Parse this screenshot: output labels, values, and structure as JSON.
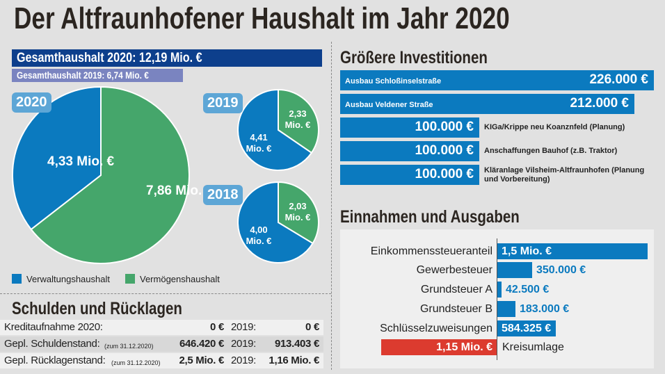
{
  "title": "Der Altfraunhofener Haushalt im Jahr 2020",
  "totals": {
    "t2020": "Gesamthaushalt 2020: 12,19 Mio. €",
    "t2019": "Gesamthaushalt 2019: 6,74 Mio. €"
  },
  "colors": {
    "blue": "#0b7abf",
    "green": "#45a66b",
    "navy": "#0d3f8c",
    "lavender": "#7a84c0",
    "tab": "#5da6d6",
    "red": "#dc3b2f"
  },
  "chart_data": [
    {
      "type": "pie",
      "title": "2020",
      "series": [
        {
          "name": "Verwaltungshaushalt",
          "value": 4.33,
          "label": "4,33 Mio. €"
        },
        {
          "name": "Vermögenshaushalt",
          "value": 7.86,
          "label": "7,86 Mio. €"
        }
      ]
    },
    {
      "type": "pie",
      "title": "2019",
      "series": [
        {
          "name": "Verwaltungshaushalt",
          "value": 4.41,
          "label": "4,41 Mio. €"
        },
        {
          "name": "Vermögenshaushalt",
          "value": 2.33,
          "label": "2,33 Mio. €"
        }
      ]
    },
    {
      "type": "pie",
      "title": "2018",
      "series": [
        {
          "name": "Verwaltungshaushalt",
          "value": 4.0,
          "label": "4,00 Mio. €"
        },
        {
          "name": "Vermögenshaushalt",
          "value": 2.03,
          "label": "2,03 Mio. €"
        }
      ]
    },
    {
      "type": "bar",
      "title": "Größere Investitionen",
      "categories": [
        "Ausbau Schloßinselstraße",
        "Ausbau Veldener Straße",
        "KIGa/Krippe neu Koanznfeld (Planung)",
        "Anschaffungen Bauhof (z.B. Traktor)",
        "Kläranlage Vilsheim-Altfraunhofen (Planung und Vorbereitung)"
      ],
      "values": [
        226000,
        212000,
        100000,
        100000,
        100000
      ],
      "labels": [
        "226.000 €",
        "212.000 €",
        "100.000 €",
        "100.000 €",
        "100.000 €"
      ]
    },
    {
      "type": "bar",
      "title": "Einnahmen und Ausgaben",
      "categories": [
        "Einkommenssteueranteil",
        "Gewerbesteuer",
        "Grundsteuer A",
        "Grundsteuer B",
        "Schlüsselzuweisungen",
        "Kreisumlage"
      ],
      "values": [
        1500000,
        350000,
        42500,
        183000,
        584325,
        -1150000
      ],
      "labels": [
        "1,5 Mio. €",
        "350.000 €",
        "42.500 €",
        "183.000 €",
        "584.325 €",
        "1,15 Mio. €"
      ]
    }
  ],
  "legend": [
    "Verwaltungshaushalt",
    "Vermögenshaushalt"
  ],
  "debt": {
    "title": "Schulden und Rücklagen",
    "rows": [
      {
        "label": "Kreditaufnahme 2020:",
        "note": "",
        "v2020": "0 €",
        "y": "2019:",
        "v2019": "0 €"
      },
      {
        "label": "Gepl. Schuldenstand:",
        "note": "(zum 31.12.2020)",
        "v2020": "646.420 €",
        "y": "2019:",
        "v2019": "913.403 €"
      },
      {
        "label": "Gepl. Rücklagenstand:",
        "note": "(zum 31.12.2020)",
        "v2020": "2,5 Mio. €",
        "y": "2019:",
        "v2019": "1,16 Mio. €"
      }
    ]
  }
}
